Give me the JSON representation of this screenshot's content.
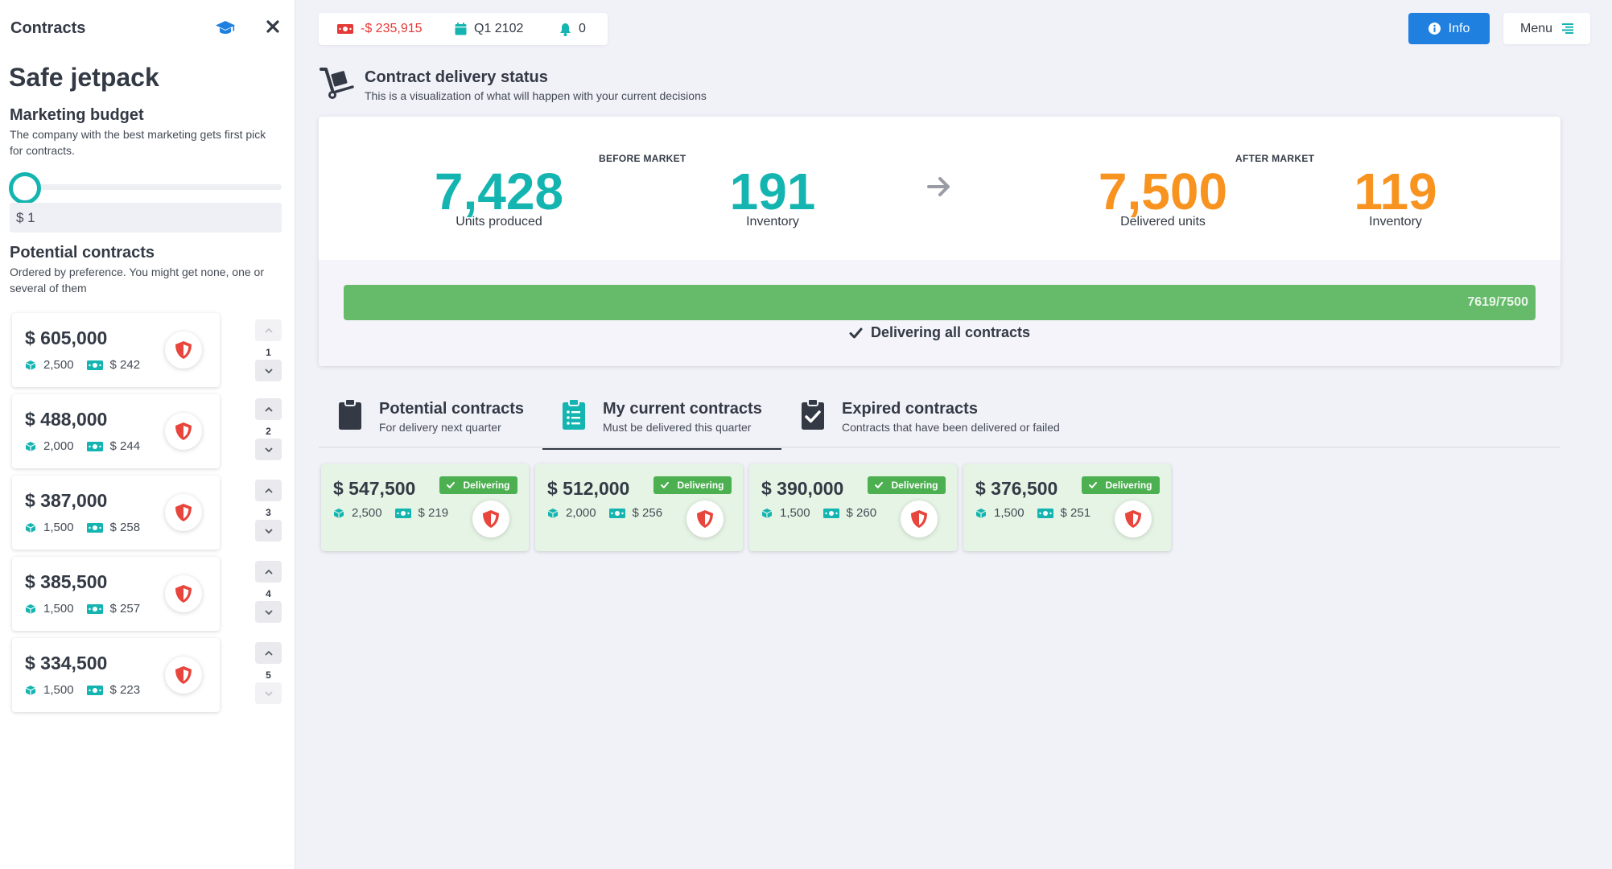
{
  "sidebar": {
    "header_title": "Contracts",
    "product_name": "Safe jetpack",
    "marketing": {
      "title": "Marketing budget",
      "description": "The company with the best marketing gets first pick for contracts.",
      "budget_value": "$ 1",
      "slider_level": 0
    },
    "potential": {
      "title": "Potential contracts",
      "description": "Ordered by preference. You might get none, one or several of them",
      "items": [
        {
          "price": "$ 605,000",
          "units": "2,500",
          "unit_price": "$ 242",
          "rank": "1"
        },
        {
          "price": "$ 488,000",
          "units": "2,000",
          "unit_price": "$ 244",
          "rank": "2"
        },
        {
          "price": "$ 387,000",
          "units": "1,500",
          "unit_price": "$ 258",
          "rank": "3"
        },
        {
          "price": "$ 385,500",
          "units": "1,500",
          "unit_price": "$ 257",
          "rank": "4"
        },
        {
          "price": "$ 334,500",
          "units": "1,500",
          "unit_price": "$ 223",
          "rank": "5"
        }
      ]
    }
  },
  "topbar": {
    "cash": "-$ 235,915",
    "quarter": "Q1 2102",
    "notifications": "0",
    "info_label": "Info",
    "menu_label": "Menu"
  },
  "delivery": {
    "title": "Contract delivery status",
    "subtitle": "This is a visualization of what will happen with your current decisions",
    "before_label": "BEFORE MARKET",
    "after_label": "AFTER MARKET",
    "units_produced": "7,428",
    "units_produced_label": "Units produced",
    "inventory_before": "191",
    "inventory_before_label": "Inventory",
    "delivered_units": "7,500",
    "delivered_units_label": "Delivered units",
    "inventory_after": "119",
    "inventory_after_label": "Inventory",
    "progress_text": "7619/7500",
    "progress_fraction": 1.0,
    "message": "Delivering all contracts"
  },
  "tabs": [
    {
      "title": "Potential contracts",
      "subtitle": "For delivery next quarter"
    },
    {
      "title": "My current contracts",
      "subtitle": "Must be delivered this quarter"
    },
    {
      "title": "Expired contracts",
      "subtitle": "Contracts that have been delivered or failed"
    }
  ],
  "current_contracts": [
    {
      "price": "$ 547,500",
      "units": "2,500",
      "unit_price": "$ 219",
      "status": "Delivering"
    },
    {
      "price": "$ 512,000",
      "units": "2,000",
      "unit_price": "$ 256",
      "status": "Delivering"
    },
    {
      "price": "$ 390,000",
      "units": "1,500",
      "unit_price": "$ 260",
      "status": "Delivering"
    },
    {
      "price": "$ 376,500",
      "units": "1,500",
      "unit_price": "$ 251",
      "status": "Delivering"
    }
  ],
  "colors": {
    "teal": "#14b5b0",
    "orange": "#f7931e",
    "negative": "#e53935",
    "info_button": "#1f80e0",
    "progress": "#66bb6a",
    "delivering_badge": "#4caf50",
    "shield": "#e8453c"
  },
  "icons": {
    "header": [
      "graduation-cap-icon",
      "close-icon"
    ],
    "status": [
      "money-icon",
      "calendar-icon",
      "bell-icon"
    ],
    "tabs": [
      "clipboard-icon",
      "clipboard-list-icon",
      "clipboard-check-icon"
    ],
    "contract": [
      "cube-icon",
      "money-icon",
      "shield-icon"
    ]
  }
}
